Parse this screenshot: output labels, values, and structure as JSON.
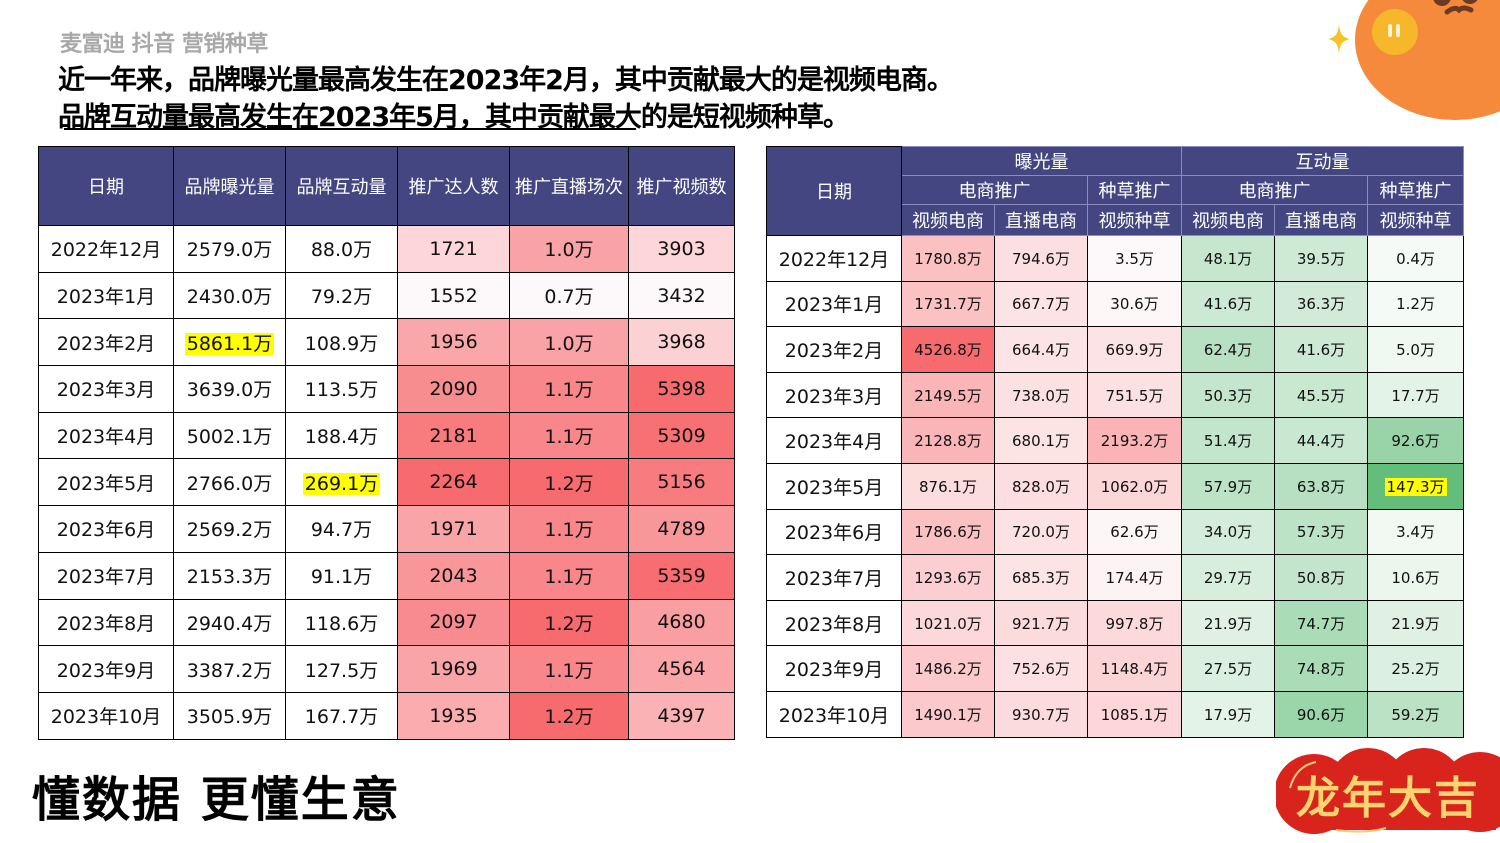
{
  "header": {
    "brand": "麦富迪 抖音 营销种草",
    "headline_1": "近一年来，品牌曝光量最高发生在2023年2月，其中贡献最大的是视频电商。",
    "headline_2": "品牌互动量最高发生在2023年5月，其中贡献最大的是短视频种草。"
  },
  "colors": {
    "header_bg": "#434681",
    "heat_red_max": "#f76a6e",
    "heat_green_max": "#63be7b",
    "highlight": "#ffff00"
  },
  "table_summary": {
    "columns": [
      "日期",
      "品牌曝光量",
      "品牌互动量",
      "推广达人数",
      "推广直播场次",
      "推广视频数"
    ],
    "rows": [
      {
        "date": "2022年12月",
        "exposure": "2579.0万",
        "interaction": "88.0万",
        "creators": "1721",
        "live": "1.0万",
        "videos": "3903"
      },
      {
        "date": "2023年1月",
        "exposure": "2430.0万",
        "interaction": "79.2万",
        "creators": "1552",
        "live": "0.7万",
        "videos": "3432"
      },
      {
        "date": "2023年2月",
        "exposure": "5861.1万",
        "interaction": "108.9万",
        "creators": "1956",
        "live": "1.0万",
        "videos": "3968"
      },
      {
        "date": "2023年3月",
        "exposure": "3639.0万",
        "interaction": "113.5万",
        "creators": "2090",
        "live": "1.1万",
        "videos": "5398"
      },
      {
        "date": "2023年4月",
        "exposure": "5002.1万",
        "interaction": "188.4万",
        "creators": "2181",
        "live": "1.1万",
        "videos": "5309"
      },
      {
        "date": "2023年5月",
        "exposure": "2766.0万",
        "interaction": "269.1万",
        "creators": "2264",
        "live": "1.2万",
        "videos": "5156"
      },
      {
        "date": "2023年6月",
        "exposure": "2569.2万",
        "interaction": "94.7万",
        "creators": "1971",
        "live": "1.1万",
        "videos": "4789"
      },
      {
        "date": "2023年7月",
        "exposure": "2153.3万",
        "interaction": "91.1万",
        "creators": "2043",
        "live": "1.1万",
        "videos": "5359"
      },
      {
        "date": "2023年8月",
        "exposure": "2940.4万",
        "interaction": "118.6万",
        "creators": "2097",
        "live": "1.2万",
        "videos": "4680"
      },
      {
        "date": "2023年9月",
        "exposure": "3387.2万",
        "interaction": "127.5万",
        "creators": "1969",
        "live": "1.1万",
        "videos": "4564"
      },
      {
        "date": "2023年10月",
        "exposure": "3505.9万",
        "interaction": "167.7万",
        "creators": "1935",
        "live": "1.2万",
        "videos": "4397"
      }
    ]
  },
  "table_breakdown": {
    "date_header": "日期",
    "group_exposure": "曝光量",
    "group_interaction": "互动量",
    "sub_ecommerce": "电商推广",
    "sub_seeding": "种草推广",
    "col_video_ec": "视频电商",
    "col_live_ec": "直播电商",
    "col_video_seed": "视频种草",
    "rows": [
      {
        "date": "2022年12月",
        "exp_video_ec": "1780.8万",
        "exp_live_ec": "794.6万",
        "exp_video_seed": "3.5万",
        "int_video_ec": "48.1万",
        "int_live_ec": "39.5万",
        "int_video_seed": "0.4万"
      },
      {
        "date": "2023年1月",
        "exp_video_ec": "1731.7万",
        "exp_live_ec": "667.7万",
        "exp_video_seed": "30.6万",
        "int_video_ec": "41.6万",
        "int_live_ec": "36.3万",
        "int_video_seed": "1.2万"
      },
      {
        "date": "2023年2月",
        "exp_video_ec": "4526.8万",
        "exp_live_ec": "664.4万",
        "exp_video_seed": "669.9万",
        "int_video_ec": "62.4万",
        "int_live_ec": "41.6万",
        "int_video_seed": "5.0万"
      },
      {
        "date": "2023年3月",
        "exp_video_ec": "2149.5万",
        "exp_live_ec": "738.0万",
        "exp_video_seed": "751.5万",
        "int_video_ec": "50.3万",
        "int_live_ec": "45.5万",
        "int_video_seed": "17.7万"
      },
      {
        "date": "2023年4月",
        "exp_video_ec": "2128.8万",
        "exp_live_ec": "680.1万",
        "exp_video_seed": "2193.2万",
        "int_video_ec": "51.4万",
        "int_live_ec": "44.4万",
        "int_video_seed": "92.6万"
      },
      {
        "date": "2023年5月",
        "exp_video_ec": "876.1万",
        "exp_live_ec": "828.0万",
        "exp_video_seed": "1062.0万",
        "int_video_ec": "57.9万",
        "int_live_ec": "63.8万",
        "int_video_seed": "147.3万"
      },
      {
        "date": "2023年6月",
        "exp_video_ec": "1786.6万",
        "exp_live_ec": "720.0万",
        "exp_video_seed": "62.6万",
        "int_video_ec": "34.0万",
        "int_live_ec": "57.3万",
        "int_video_seed": "3.4万"
      },
      {
        "date": "2023年7月",
        "exp_video_ec": "1293.6万",
        "exp_live_ec": "685.3万",
        "exp_video_seed": "174.4万",
        "int_video_ec": "29.7万",
        "int_live_ec": "50.8万",
        "int_video_seed": "10.6万"
      },
      {
        "date": "2023年8月",
        "exp_video_ec": "1021.0万",
        "exp_live_ec": "921.7万",
        "exp_video_seed": "997.8万",
        "int_video_ec": "21.9万",
        "int_live_ec": "74.7万",
        "int_video_seed": "21.9万"
      },
      {
        "date": "2023年9月",
        "exp_video_ec": "1486.2万",
        "exp_live_ec": "752.6万",
        "exp_video_seed": "1148.4万",
        "int_video_ec": "27.5万",
        "int_live_ec": "74.8万",
        "int_video_seed": "25.2万"
      },
      {
        "date": "2023年10月",
        "exp_video_ec": "1490.1万",
        "exp_live_ec": "930.7万",
        "exp_video_seed": "1085.1万",
        "int_video_ec": "17.9万",
        "int_live_ec": "90.6万",
        "int_video_seed": "59.2万"
      }
    ]
  },
  "footer": {
    "slogan": "懂数据 更懂生意",
    "banner": "龙年大吉"
  }
}
